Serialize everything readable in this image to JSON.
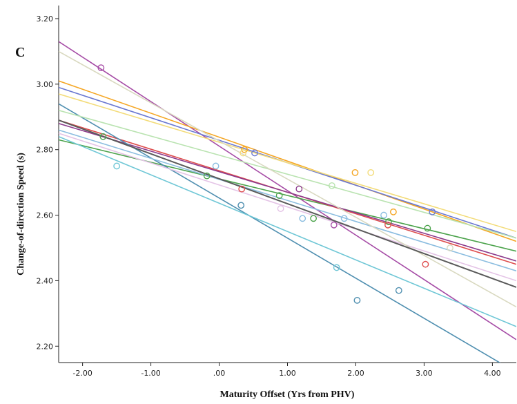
{
  "chart_data": {
    "type": "scatter",
    "panel_label": "C",
    "xlabel": "Maturity Offset (Yrs from PHV)",
    "ylabel": "Change-of-direction Speed (s)",
    "xlim": [
      -2.35,
      4.35
    ],
    "ylim": [
      2.15,
      3.24
    ],
    "x_ticks": [
      -2,
      -1,
      0,
      1,
      2,
      3,
      4
    ],
    "x_tick_labels": [
      "-2.00",
      "-1.00",
      ".00",
      "1.00",
      "2.00",
      "3.00",
      "4.00"
    ],
    "y_ticks": [
      2.2,
      2.4,
      2.6,
      2.8,
      3.0,
      3.2
    ],
    "y_tick_labels": [
      "2.20",
      "2.40",
      "2.60",
      "2.80",
      "3.00",
      "3.20"
    ],
    "grid": false,
    "overall_fit": {
      "color": "#5a5a5a",
      "start": [
        -2.35,
        2.89
      ],
      "end": [
        4.35,
        2.38
      ]
    },
    "series": [
      {
        "color": "#a64ca6",
        "points": [
          [
            -1.73,
            3.05
          ],
          [
            1.68,
            2.57
          ]
        ],
        "fit": [
          [
            -2.35,
            3.13
          ],
          [
            4.35,
            2.22
          ]
        ]
      },
      {
        "color": "#f5a623",
        "points": [
          [
            0.37,
            2.8
          ],
          [
            1.99,
            2.73
          ],
          [
            2.55,
            2.61
          ]
        ],
        "fit": [
          [
            -2.35,
            3.01
          ],
          [
            4.35,
            2.52
          ]
        ]
      },
      {
        "color": "#6a78d1",
        "points": [
          [
            0.52,
            2.79
          ],
          [
            3.12,
            2.61
          ]
        ],
        "fit": [
          [
            -2.35,
            2.99
          ],
          [
            4.35,
            2.53
          ]
        ]
      },
      {
        "color": "#f3dc7a",
        "points": [
          [
            2.22,
            2.73
          ],
          [
            0.35,
            2.79
          ]
        ],
        "fit": [
          [
            -2.35,
            2.97
          ],
          [
            4.35,
            2.55
          ]
        ]
      },
      {
        "color": "#4ca34c",
        "points": [
          [
            -1.7,
            2.84
          ],
          [
            -0.18,
            2.72
          ],
          [
            0.88,
            2.66
          ],
          [
            1.38,
            2.59
          ],
          [
            2.48,
            2.58
          ],
          [
            3.05,
            2.56
          ]
        ],
        "fit": [
          [
            -2.35,
            2.83
          ],
          [
            4.35,
            2.49
          ]
        ]
      },
      {
        "color": "#de4d4d",
        "points": [
          [
            0.33,
            2.68
          ],
          [
            2.47,
            2.57
          ],
          [
            3.02,
            2.45
          ]
        ],
        "fit": [
          [
            -2.35,
            2.89
          ],
          [
            4.35,
            2.45
          ]
        ]
      },
      {
        "color": "#8c3a8c",
        "points": [
          [
            1.17,
            2.68
          ]
        ],
        "fit": [
          [
            -2.35,
            2.88
          ],
          [
            4.35,
            2.46
          ]
        ]
      },
      {
        "color": "#4f8fb0",
        "points": [
          [
            0.32,
            2.63
          ],
          [
            2.02,
            2.34
          ],
          [
            2.63,
            2.37
          ]
        ],
        "fit": [
          [
            -2.35,
            2.94
          ],
          [
            4.35,
            2.12
          ]
        ]
      },
      {
        "color": "#6fc7d6",
        "points": [
          [
            -1.5,
            2.75
          ],
          [
            1.72,
            2.44
          ]
        ],
        "fit": [
          [
            -2.35,
            2.84
          ],
          [
            4.35,
            2.26
          ]
        ]
      },
      {
        "color": "#8bbde0",
        "points": [
          [
            -0.05,
            2.75
          ],
          [
            1.22,
            2.59
          ],
          [
            1.83,
            2.59
          ],
          [
            2.41,
            2.6
          ]
        ],
        "fit": [
          [
            -2.35,
            2.86
          ],
          [
            4.35,
            2.43
          ]
        ]
      },
      {
        "color": "#b9e3b0",
        "points": [
          [
            1.65,
            2.69
          ]
        ],
        "fit": [
          [
            -2.35,
            2.92
          ],
          [
            4.35,
            2.53
          ]
        ]
      },
      {
        "color": "#e4c3e6",
        "points": [
          [
            0.9,
            2.62
          ]
        ],
        "fit": [
          [
            -2.35,
            2.85
          ],
          [
            4.35,
            2.4
          ]
        ]
      },
      {
        "color": "#d9d9c0",
        "points": [
          [
            3.38,
            2.5
          ]
        ],
        "fit": [
          [
            -2.35,
            3.1
          ],
          [
            4.35,
            2.32
          ]
        ]
      }
    ]
  }
}
